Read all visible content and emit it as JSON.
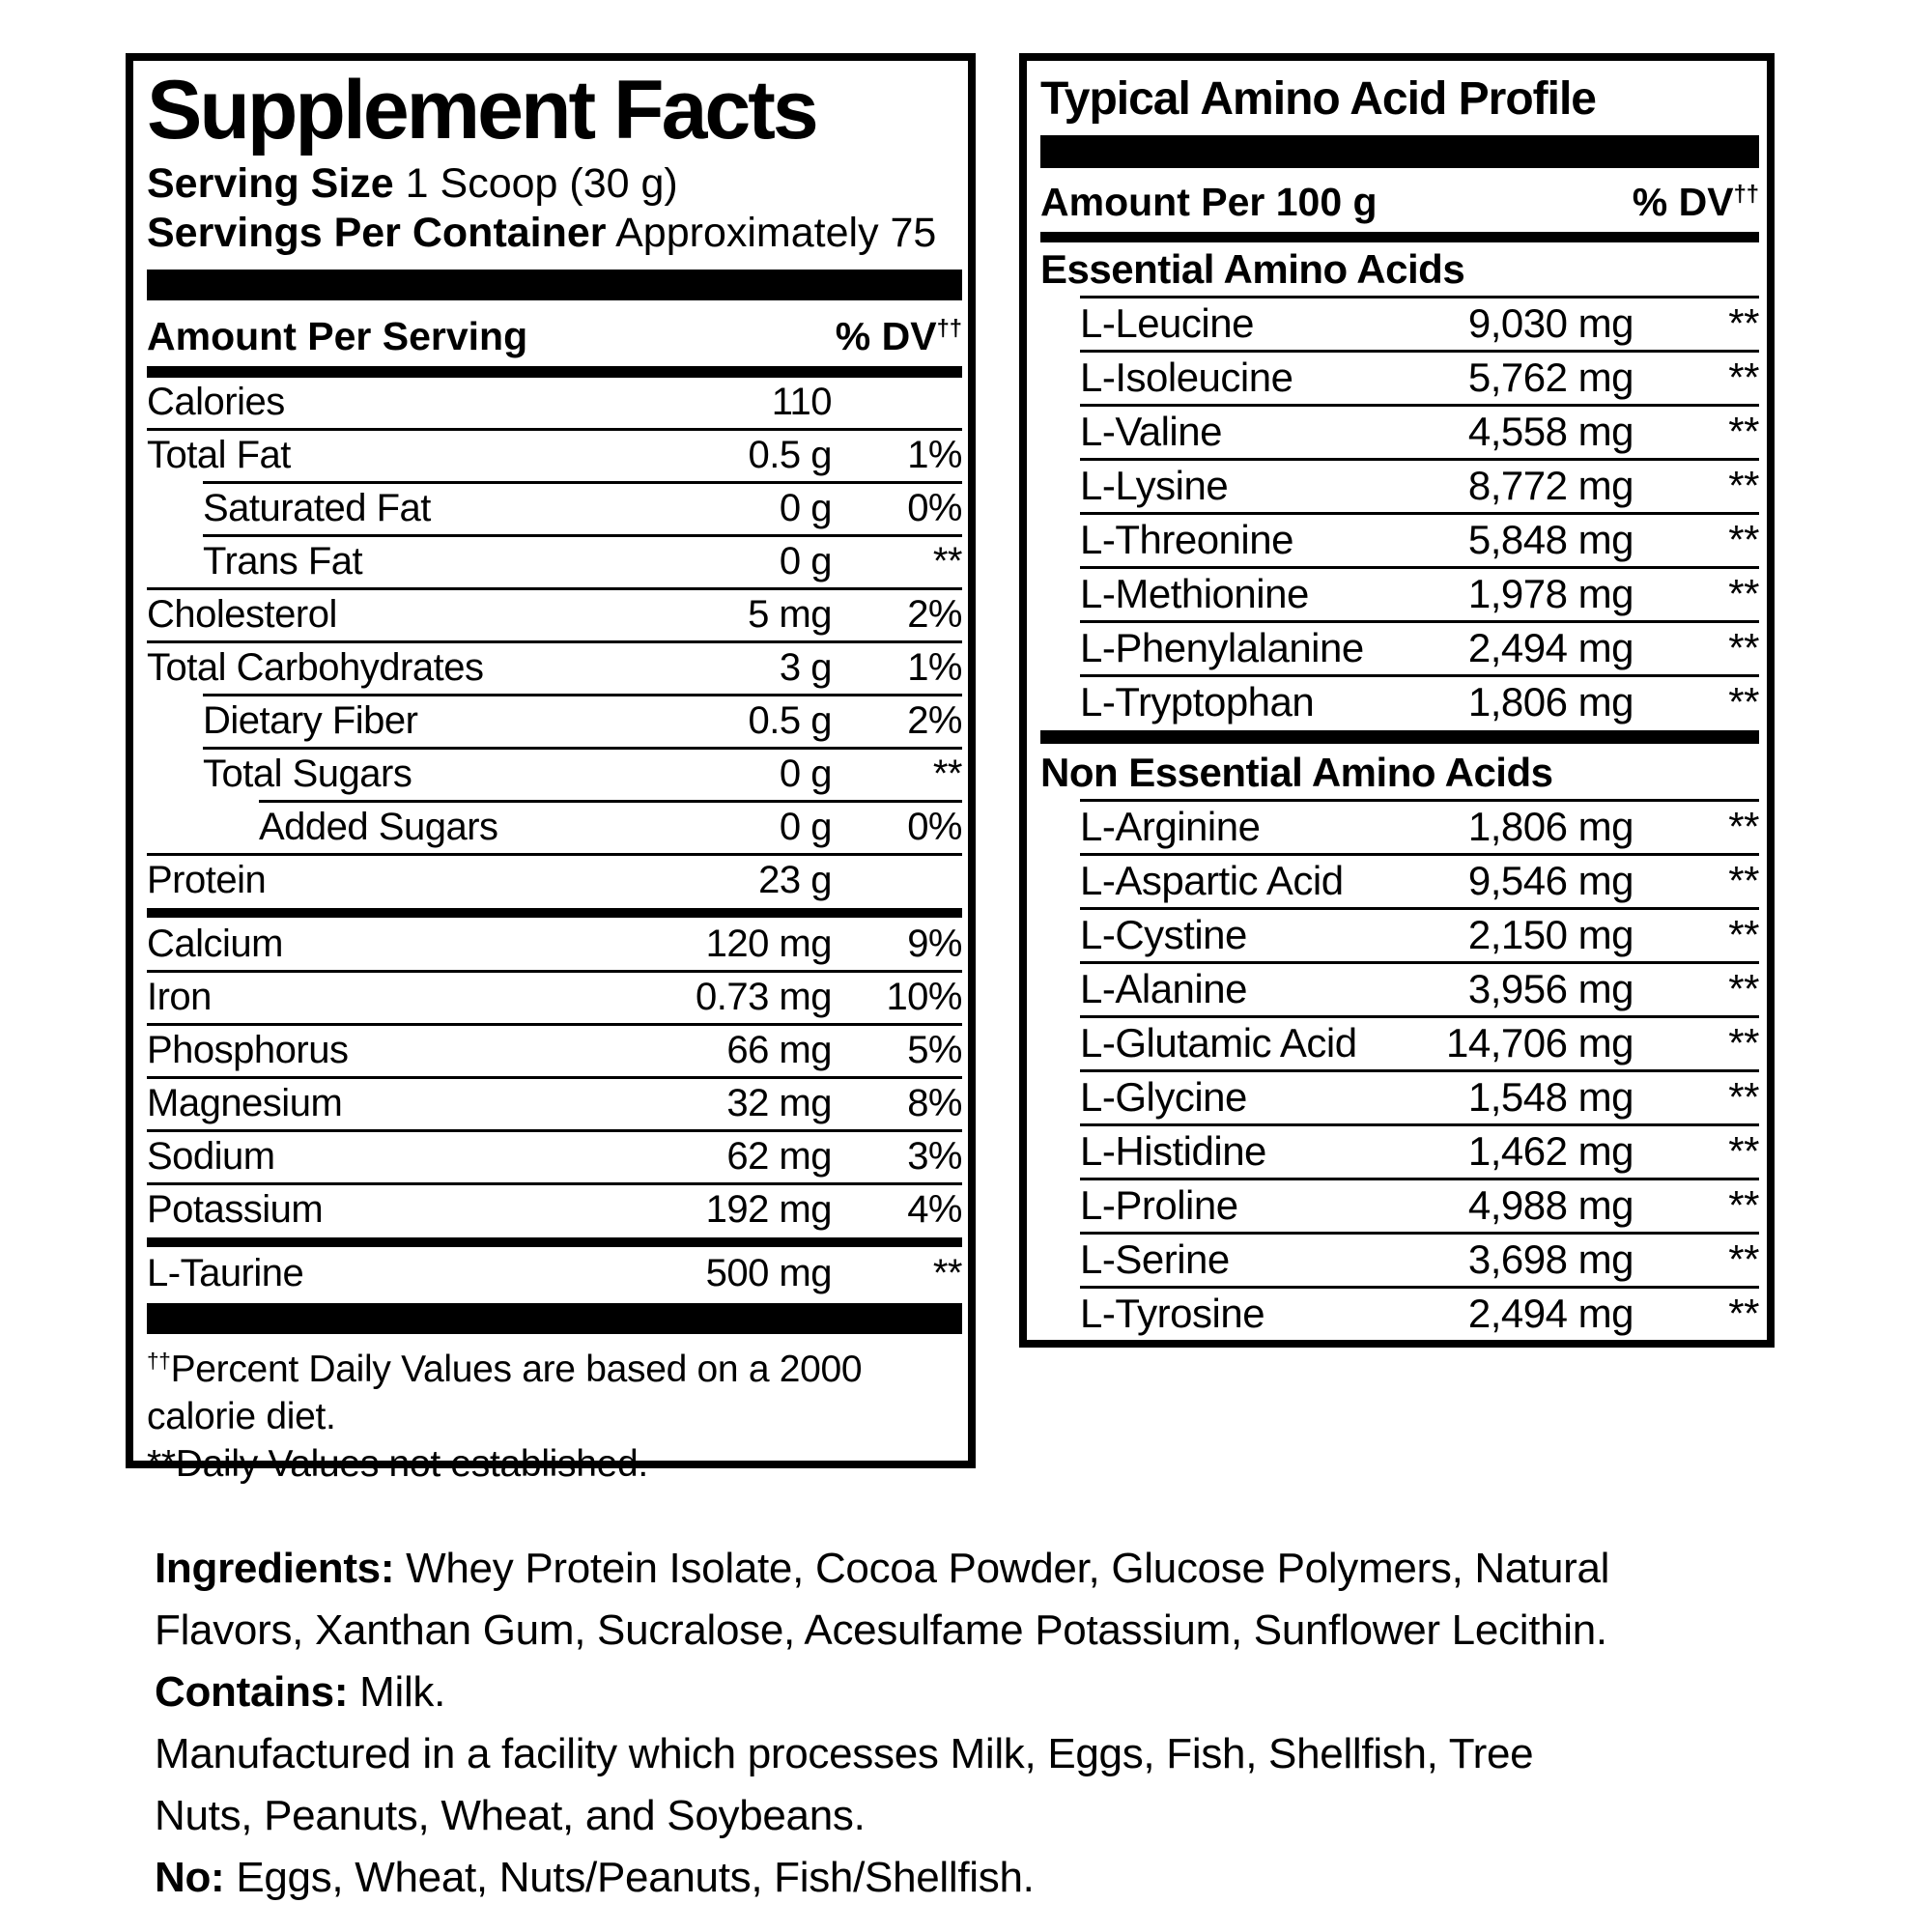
{
  "colors": {
    "ink": "#000000",
    "background": "#ffffff"
  },
  "supplement_facts": {
    "title": "Supplement Facts",
    "serving_size_label": "Serving Size",
    "serving_size_value": " 1 Scoop (30 g)",
    "servings_label": "Servings Per Container",
    "servings_value": " Approximately 75",
    "amount_header": "Amount Per Serving",
    "dv_header": "% DV",
    "dagger": "††",
    "groups": [
      {
        "rows": [
          {
            "name": "Calories",
            "amount": "110",
            "dv": "",
            "level": 0
          },
          {
            "name": "Total Fat",
            "amount": "0.5 g",
            "dv": "1%",
            "level": 0
          },
          {
            "name": "Saturated Fat",
            "amount": "0 g",
            "dv": "0%",
            "level": 1
          },
          {
            "name": "Trans Fat",
            "amount": "0 g",
            "dv": "**",
            "level": 1
          },
          {
            "name": "Cholesterol",
            "amount": "5 mg",
            "dv": "2%",
            "level": 0
          },
          {
            "name": "Total Carbohydrates",
            "amount": "3 g",
            "dv": "1%",
            "level": 0
          },
          {
            "name": "Dietary Fiber",
            "amount": "0.5 g",
            "dv": "2%",
            "level": 1
          },
          {
            "name": "Total Sugars",
            "amount": "0 g",
            "dv": "**",
            "level": 1
          },
          {
            "name": "Added Sugars",
            "amount": "0 g",
            "dv": "0%",
            "level": 2
          },
          {
            "name": "Protein",
            "amount": "23 g",
            "dv": "",
            "level": 0
          }
        ]
      },
      {
        "rows": [
          {
            "name": "Calcium",
            "amount": "120 mg",
            "dv": "9%",
            "level": 0
          },
          {
            "name": "Iron",
            "amount": "0.73 mg",
            "dv": "10%",
            "level": 0
          },
          {
            "name": "Phosphorus",
            "amount": "66 mg",
            "dv": "5%",
            "level": 0
          },
          {
            "name": "Magnesium",
            "amount": "32 mg",
            "dv": "8%",
            "level": 0
          },
          {
            "name": "Sodium",
            "amount": "62 mg",
            "dv": "3%",
            "level": 0
          },
          {
            "name": "Potassium",
            "amount": "192 mg",
            "dv": "4%",
            "level": 0
          }
        ]
      },
      {
        "rows": [
          {
            "name": "L-Taurine",
            "amount": "500 mg",
            "dv": "**",
            "level": 0
          }
        ]
      }
    ],
    "footnotes": [
      {
        "sup": "††",
        "text": "Percent Daily Values are based on a 2000 calorie diet."
      },
      {
        "sup": "",
        "text": "**Daily Values not established."
      }
    ]
  },
  "amino_profile": {
    "title": "Typical Amino Acid Profile",
    "amount_header": "Amount Per 100 g",
    "dv_header": "% DV",
    "dagger": "††",
    "sections": [
      {
        "heading": "Essential Amino Acids",
        "rows": [
          {
            "name": "L-Leucine",
            "amount": "9,030 mg",
            "dv": "**"
          },
          {
            "name": "L-Isoleucine",
            "amount": "5,762 mg",
            "dv": "**"
          },
          {
            "name": "L-Valine",
            "amount": "4,558 mg",
            "dv": "**"
          },
          {
            "name": "L-Lysine",
            "amount": "8,772 mg",
            "dv": "**"
          },
          {
            "name": "L-Threonine",
            "amount": "5,848 mg",
            "dv": "**"
          },
          {
            "name": "L-Methionine",
            "amount": "1,978 mg",
            "dv": "**"
          },
          {
            "name": "L-Phenylalanine",
            "amount": "2,494 mg",
            "dv": "**"
          },
          {
            "name": "L-Tryptophan",
            "amount": "1,806 mg",
            "dv": "**"
          }
        ]
      },
      {
        "heading": "Non Essential Amino Acids",
        "rows": [
          {
            "name": "L-Arginine",
            "amount": "1,806 mg",
            "dv": "**"
          },
          {
            "name": "L-Aspartic Acid",
            "amount": "9,546 mg",
            "dv": "**"
          },
          {
            "name": "L-Cystine",
            "amount": "2,150 mg",
            "dv": "**"
          },
          {
            "name": "L-Alanine",
            "amount": "3,956 mg",
            "dv": "**"
          },
          {
            "name": "L-Glutamic Acid",
            "amount": "14,706 mg",
            "dv": "**"
          },
          {
            "name": "L-Glycine",
            "amount": "1,548 mg",
            "dv": "**"
          },
          {
            "name": "L-Histidine",
            "amount": "1,462 mg",
            "dv": "**"
          },
          {
            "name": "L-Proline",
            "amount": "4,988 mg",
            "dv": "**"
          },
          {
            "name": "L-Serine",
            "amount": "3,698 mg",
            "dv": "**"
          },
          {
            "name": "L-Tyrosine",
            "amount": "2,494 mg",
            "dv": "**"
          }
        ]
      }
    ]
  },
  "ingredients": {
    "lines": [
      {
        "bold": "Ingredients:",
        "text": " Whey Protein Isolate, Cocoa Powder, Glucose Polymers, Natural"
      },
      {
        "bold": "",
        "text": "Flavors, Xanthan Gum, Sucralose, Acesulfame Potassium, Sunflower Lecithin."
      },
      {
        "bold": "Contains:",
        "text": " Milk."
      },
      {
        "bold": "",
        "text": "Manufactured in a facility which processes Milk, Eggs, Fish, Shellfish, Tree"
      },
      {
        "bold": "",
        "text": "Nuts, Peanuts, Wheat, and Soybeans."
      },
      {
        "bold": "No:",
        "text": " Eggs, Wheat, Nuts/Peanuts, Fish/Shellfish."
      }
    ]
  }
}
